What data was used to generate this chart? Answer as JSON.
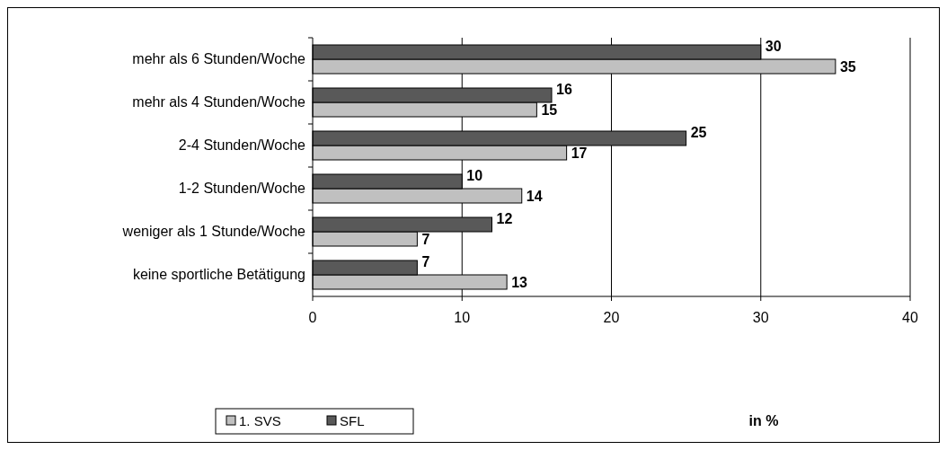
{
  "chart_data": {
    "type": "bar",
    "orientation": "horizontal",
    "categories": [
      "mehr als 6 Stunden/Woche",
      "mehr als 4 Stunden/Woche",
      "2-4 Stunden/Woche",
      "1-2 Stunden/Woche",
      "weniger als 1 Stunde/Woche",
      "keine sportliche Betätigung"
    ],
    "series": [
      {
        "name": "1. SVS",
        "color": "#c0c0c0",
        "values": [
          35,
          15,
          17,
          14,
          7,
          13
        ]
      },
      {
        "name": "SFL",
        "color": "#595959",
        "values": [
          30,
          16,
          25,
          10,
          12,
          7
        ]
      }
    ],
    "xlim": [
      0,
      40
    ],
    "xticks": [
      0,
      10,
      20,
      30,
      40
    ],
    "annotations": [
      "in %"
    ],
    "grid": "x",
    "legend": "bottom",
    "data_labels": true
  }
}
